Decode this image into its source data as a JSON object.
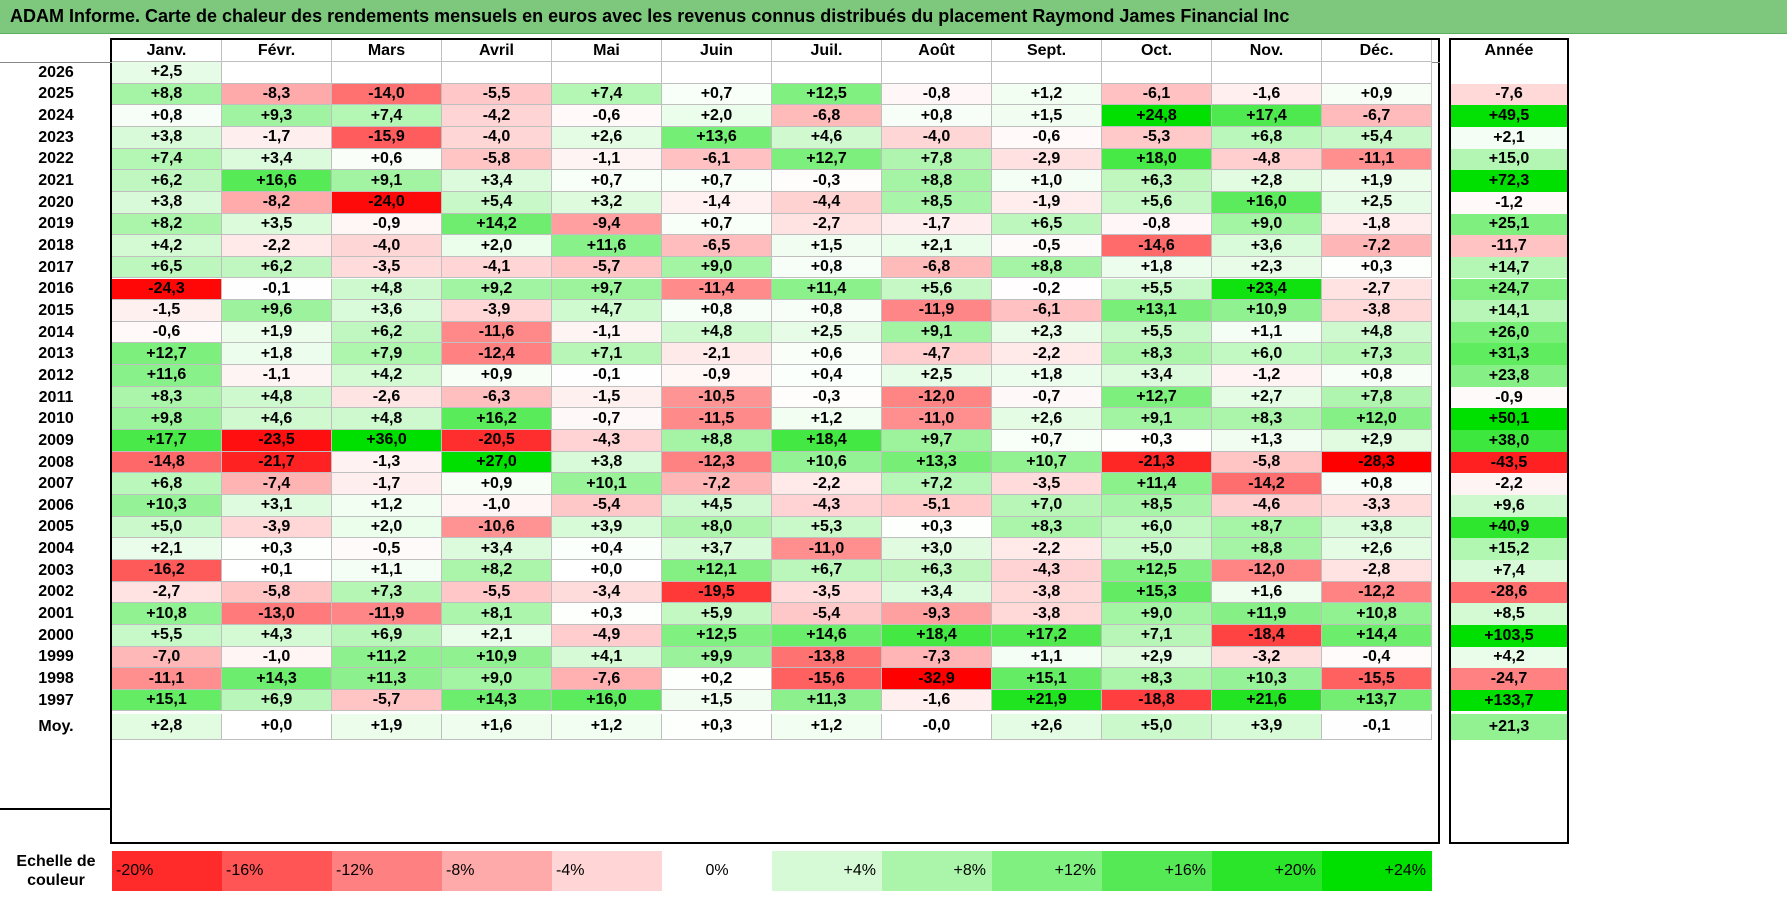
{
  "title": "ADAM Informe. Carte de chaleur des rendements mensuels en euros avec les revenus connus distribués du placement Raymond James Financial Inc",
  "chart_data": {
    "type": "heatmap",
    "title": "ADAM Informe. Carte de chaleur des rendements mensuels en euros avec les revenus connus distribués du placement Raymond James Financial Inc",
    "columns": [
      "Janv.",
      "Févr.",
      "Mars",
      "Avril",
      "Mai",
      "Juin",
      "Juil.",
      "Août",
      "Sept.",
      "Oct.",
      "Nov.",
      "Déc."
    ],
    "year_label": "Année",
    "rows": [
      {
        "year": "2026",
        "values": [
          "+2,5",
          "",
          "",
          "",
          "",
          "",
          "",
          "",
          "",
          "",
          "",
          ""
        ],
        "annual": ""
      },
      {
        "year": "2025",
        "values": [
          "+8,8",
          "-8,3",
          "-14,0",
          "-5,5",
          "+7,4",
          "+0,7",
          "+12,5",
          "-0,8",
          "+1,2",
          "-6,1",
          "-1,6",
          "+0,9"
        ],
        "annual": "-7,6"
      },
      {
        "year": "2024",
        "values": [
          "+0,8",
          "+9,3",
          "+7,4",
          "-4,2",
          "-0,6",
          "+2,0",
          "-6,8",
          "+0,8",
          "+1,5",
          "+24,8",
          "+17,4",
          "-6,7"
        ],
        "annual": "+49,5"
      },
      {
        "year": "2023",
        "values": [
          "+3,8",
          "-1,7",
          "-15,9",
          "-4,0",
          "+2,6",
          "+13,6",
          "+4,6",
          "-4,0",
          "-0,6",
          "-5,3",
          "+6,8",
          "+5,4"
        ],
        "annual": "+2,1"
      },
      {
        "year": "2022",
        "values": [
          "+7,4",
          "+3,4",
          "+0,6",
          "-5,8",
          "-1,1",
          "-6,1",
          "+12,7",
          "+7,8",
          "-2,9",
          "+18,0",
          "-4,8",
          "-11,1"
        ],
        "annual": "+15,0"
      },
      {
        "year": "2021",
        "values": [
          "+6,2",
          "+16,6",
          "+9,1",
          "+3,4",
          "+0,7",
          "+0,7",
          "-0,3",
          "+8,8",
          "+1,0",
          "+6,3",
          "+2,8",
          "+1,9"
        ],
        "annual": "+72,3"
      },
      {
        "year": "2020",
        "values": [
          "+3,8",
          "-8,2",
          "-24,0",
          "+5,4",
          "+3,2",
          "-1,4",
          "-4,4",
          "+8,5",
          "-1,9",
          "+5,6",
          "+16,0",
          "+2,5"
        ],
        "annual": "-1,2"
      },
      {
        "year": "2019",
        "values": [
          "+8,2",
          "+3,5",
          "-0,9",
          "+14,2",
          "-9,4",
          "+0,7",
          "-2,7",
          "-1,7",
          "+6,5",
          "-0,8",
          "+9,0",
          "-1,8"
        ],
        "annual": "+25,1"
      },
      {
        "year": "2018",
        "values": [
          "+4,2",
          "-2,2",
          "-4,0",
          "+2,0",
          "+11,6",
          "-6,5",
          "+1,5",
          "+2,1",
          "-0,5",
          "-14,6",
          "+3,6",
          "-7,2"
        ],
        "annual": "-11,7"
      },
      {
        "year": "2017",
        "values": [
          "+6,5",
          "+6,2",
          "-3,5",
          "-4,1",
          "-5,7",
          "+9,0",
          "+0,8",
          "-6,8",
          "+8,8",
          "+1,8",
          "+2,3",
          "+0,3"
        ],
        "annual": "+14,7"
      },
      {
        "year": "2016",
        "values": [
          "-24,3",
          "-0,1",
          "+4,8",
          "+9,2",
          "+9,7",
          "-11,4",
          "+11,4",
          "+5,6",
          "-0,2",
          "+5,5",
          "+23,4",
          "-2,7"
        ],
        "annual": "+24,7"
      },
      {
        "year": "2015",
        "values": [
          "-1,5",
          "+9,6",
          "+3,6",
          "-3,9",
          "+4,7",
          "+0,8",
          "+0,8",
          "-11,9",
          "-6,1",
          "+13,1",
          "+10,9",
          "-3,8"
        ],
        "annual": "+14,1"
      },
      {
        "year": "2014",
        "values": [
          "-0,6",
          "+1,9",
          "+6,2",
          "-11,6",
          "-1,1",
          "+4,8",
          "+2,5",
          "+9,1",
          "+2,3",
          "+5,5",
          "+1,1",
          "+4,8"
        ],
        "annual": "+26,0"
      },
      {
        "year": "2013",
        "values": [
          "+12,7",
          "+1,8",
          "+7,9",
          "-12,4",
          "+7,1",
          "-2,1",
          "+0,6",
          "-4,7",
          "-2,2",
          "+8,3",
          "+6,0",
          "+7,3"
        ],
        "annual": "+31,3"
      },
      {
        "year": "2012",
        "values": [
          "+11,6",
          "-1,1",
          "+4,2",
          "+0,9",
          "-0,1",
          "-0,9",
          "+0,4",
          "+2,5",
          "+1,8",
          "+3,4",
          "-1,2",
          "+0,8"
        ],
        "annual": "+23,8"
      },
      {
        "year": "2011",
        "values": [
          "+8,3",
          "+4,8",
          "-2,6",
          "-6,3",
          "-1,5",
          "-10,5",
          "-0,3",
          "-12,0",
          "-0,7",
          "+12,7",
          "+2,7",
          "+7,8"
        ],
        "annual": "-0,9"
      },
      {
        "year": "2010",
        "values": [
          "+9,8",
          "+4,6",
          "+4,8",
          "+16,2",
          "-0,7",
          "-11,5",
          "+1,2",
          "-11,0",
          "+2,6",
          "+9,1",
          "+8,3",
          "+12,0"
        ],
        "annual": "+50,1"
      },
      {
        "year": "2009",
        "values": [
          "+17,7",
          "-23,5",
          "+36,0",
          "-20,5",
          "-4,3",
          "+8,8",
          "+18,4",
          "+9,7",
          "+0,7",
          "+0,3",
          "+1,3",
          "+2,9"
        ],
        "annual": "+38,0"
      },
      {
        "year": "2008",
        "values": [
          "-14,8",
          "-21,7",
          "-1,3",
          "+27,0",
          "+3,8",
          "-12,3",
          "+10,6",
          "+13,3",
          "+10,7",
          "-21,3",
          "-5,8",
          "-28,3"
        ],
        "annual": "-43,5"
      },
      {
        "year": "2007",
        "values": [
          "+6,8",
          "-7,4",
          "-1,7",
          "+0,9",
          "+10,1",
          "-7,2",
          "-2,2",
          "+7,2",
          "-3,5",
          "+11,4",
          "-14,2",
          "+0,8"
        ],
        "annual": "-2,2"
      },
      {
        "year": "2006",
        "values": [
          "+10,3",
          "+3,1",
          "+1,2",
          "-1,0",
          "-5,4",
          "+4,5",
          "-4,3",
          "-5,1",
          "+7,0",
          "+8,5",
          "-4,6",
          "-3,3"
        ],
        "annual": "+9,6"
      },
      {
        "year": "2005",
        "values": [
          "+5,0",
          "-3,9",
          "+2,0",
          "-10,6",
          "+3,9",
          "+8,0",
          "+5,3",
          "+0,3",
          "+8,3",
          "+6,0",
          "+8,7",
          "+3,8"
        ],
        "annual": "+40,9"
      },
      {
        "year": "2004",
        "values": [
          "+2,1",
          "+0,3",
          "-0,5",
          "+3,4",
          "+0,4",
          "+3,7",
          "-11,0",
          "+3,0",
          "-2,2",
          "+5,0",
          "+8,8",
          "+2,6"
        ],
        "annual": "+15,2"
      },
      {
        "year": "2003",
        "values": [
          "-16,2",
          "+0,1",
          "+1,1",
          "+8,2",
          "+0,0",
          "+12,1",
          "+6,7",
          "+6,3",
          "-4,3",
          "+12,5",
          "-12,0",
          "-2,8"
        ],
        "annual": "+7,4"
      },
      {
        "year": "2002",
        "values": [
          "-2,7",
          "-5,8",
          "+7,3",
          "-5,5",
          "-3,4",
          "-19,5",
          "-3,5",
          "+3,4",
          "-3,8",
          "+15,3",
          "+1,6",
          "-12,2"
        ],
        "annual": "-28,6"
      },
      {
        "year": "2001",
        "values": [
          "+10,8",
          "-13,0",
          "-11,9",
          "+8,1",
          "+0,3",
          "+5,9",
          "-5,4",
          "-9,3",
          "-3,8",
          "+9,0",
          "+11,9",
          "+10,8"
        ],
        "annual": "+8,5"
      },
      {
        "year": "2000",
        "values": [
          "+5,5",
          "+4,3",
          "+6,9",
          "+2,1",
          "-4,9",
          "+12,5",
          "+14,6",
          "+18,4",
          "+17,2",
          "+7,1",
          "-18,4",
          "+14,4"
        ],
        "annual": "+103,5"
      },
      {
        "year": "1999",
        "values": [
          "-7,0",
          "-1,0",
          "+11,2",
          "+10,9",
          "+4,1",
          "+9,9",
          "-13,8",
          "-7,3",
          "+1,1",
          "+2,9",
          "-3,2",
          "-0,4"
        ],
        "annual": "+4,2"
      },
      {
        "year": "1998",
        "values": [
          "-11,1",
          "+14,3",
          "+11,3",
          "+9,0",
          "-7,6",
          "+0,2",
          "-15,6",
          "-32,9",
          "+15,1",
          "+8,3",
          "+10,3",
          "-15,5"
        ],
        "annual": "-24,7"
      },
      {
        "year": "1997",
        "values": [
          "+15,1",
          "+6,9",
          "-5,7",
          "+14,3",
          "+16,0",
          "+1,5",
          "+11,3",
          "-1,6",
          "+21,9",
          "-18,8",
          "+21,6",
          "+13,7"
        ],
        "annual": "+133,7"
      }
    ],
    "average_label": "Moy.",
    "averages": [
      "+2,8",
      "+0,0",
      "+1,9",
      "+1,6",
      "+1,2",
      "+0,3",
      "+1,2",
      "-0,0",
      "+2,6",
      "+5,0",
      "+3,9",
      "-0,1"
    ],
    "average_annual": "+21,3",
    "legend_label": [
      "Echelle de",
      "couleur"
    ],
    "legend": [
      "-20%",
      "-16%",
      "-12%",
      "-8%",
      "-4%",
      "0%",
      "+4%",
      "+8%",
      "+12%",
      "+16%",
      "+20%",
      "+24%"
    ],
    "colors": {
      "title_bar": "#7ec87e",
      "negative_max": "#ff0000",
      "neutral": "#ffffff",
      "positive_max": "#00e000"
    }
  }
}
